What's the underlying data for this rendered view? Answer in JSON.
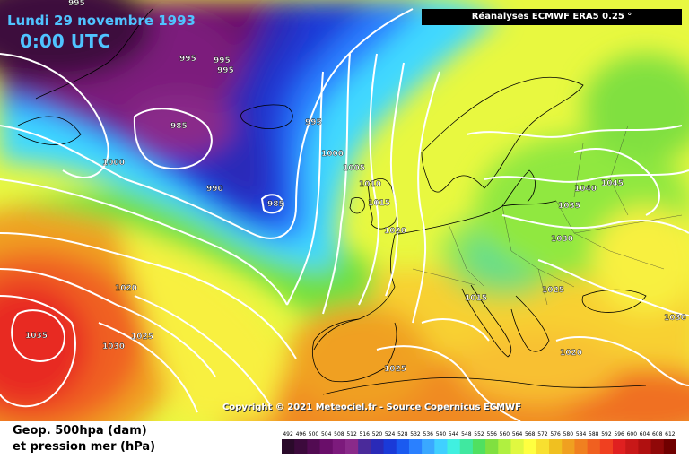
{
  "header": {
    "date": "Lundi 29 novembre 1993",
    "time": "0:00 UTC",
    "source": "Réanalyses ECMWF ERA5 0.25 °"
  },
  "copyright": "Copyright © 2021 Meteociel.fr - Source Copernicus ECMWF",
  "legend": {
    "line1": "Geop. 500hpa (dam)",
    "line2": "et pression mer (hPa)"
  },
  "scale": {
    "labels": [
      "492",
      "496",
      "500",
      "504",
      "508",
      "512",
      "516",
      "520",
      "524",
      "528",
      "532",
      "536",
      "540",
      "544",
      "548",
      "552",
      "556",
      "560",
      "564",
      "568",
      "572",
      "576",
      "580",
      "584",
      "588",
      "592",
      "596",
      "600",
      "604",
      "608",
      "612"
    ],
    "colors": [
      "#2a0a2a",
      "#3c0a3c",
      "#520b52",
      "#6a0e6a",
      "#7c1a7c",
      "#8a2a8a",
      "#4a2a9a",
      "#2a2ab8",
      "#1a3ad8",
      "#1a5af0",
      "#2a80ff",
      "#3aa8ff",
      "#40d0ff",
      "#40f0e0",
      "#40e8a0",
      "#50e060",
      "#80e040",
      "#b0f040",
      "#e0f840",
      "#ffff40",
      "#f8e030",
      "#f0c020",
      "#f0a020",
      "#f08020",
      "#f06020",
      "#f04020",
      "#e02020",
      "#c81818",
      "#b01010",
      "#900808",
      "#700000"
    ]
  },
  "isobars": [
    {
      "label": "995"
    },
    {
      "label": "995"
    },
    {
      "label": "995"
    },
    {
      "label": "995"
    },
    {
      "label": "995"
    },
    {
      "label": "985"
    },
    {
      "label": "1000"
    },
    {
      "label": "990"
    },
    {
      "label": "985"
    },
    {
      "label": "1000"
    },
    {
      "label": "1005"
    },
    {
      "label": "1010"
    },
    {
      "label": "1015"
    },
    {
      "label": "1020"
    },
    {
      "label": "1020"
    },
    {
      "label": "1025"
    },
    {
      "label": "1030"
    },
    {
      "label": "1035"
    },
    {
      "label": "1015"
    },
    {
      "label": "1025"
    },
    {
      "label": "1030"
    },
    {
      "label": "1035"
    },
    {
      "label": "1030"
    },
    {
      "label": "1040"
    },
    {
      "label": "1045"
    },
    {
      "label": "1030"
    },
    {
      "label": "1020"
    },
    {
      "label": "1025"
    }
  ]
}
